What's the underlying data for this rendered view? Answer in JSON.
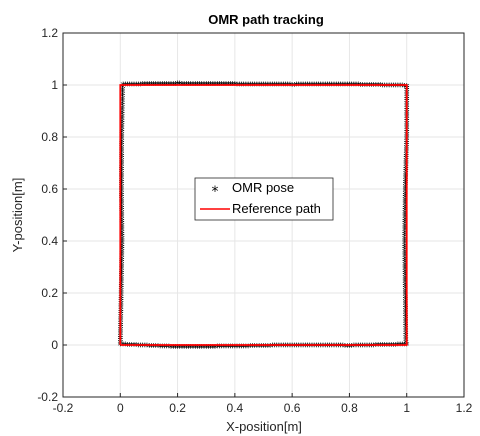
{
  "chart_data": {
    "type": "line",
    "title": "OMR path tracking",
    "xlabel": "X-position[m]",
    "ylabel": "Y-position[m]",
    "xlim": [
      -0.2,
      1.2
    ],
    "ylim": [
      -0.2,
      1.2
    ],
    "xticks": [
      -0.2,
      0,
      0.2,
      0.4,
      0.6,
      0.8,
      1,
      1.2
    ],
    "yticks": [
      -0.2,
      0,
      0.2,
      0.4,
      0.6,
      0.8,
      1,
      1.2
    ],
    "xtick_labels": [
      "-0.2",
      "0",
      "0.2",
      "0.4",
      "0.6",
      "0.8",
      "1",
      "1.2"
    ],
    "ytick_labels": [
      "-0.2",
      "0",
      "0.2",
      "0.4",
      "0.6",
      "0.8",
      "1",
      "1.2"
    ],
    "grid": true,
    "legend_placement": "center",
    "series": [
      {
        "name": "OMR pose",
        "marker": "*",
        "color": "#000000",
        "x": [
          0,
          0.003,
          0.006,
          0.004,
          0.005,
          0.008,
          0.01,
          0.2,
          0.4,
          0.6,
          0.8,
          1,
          1.0,
          0.995,
          0.993,
          0.995,
          0.997,
          1,
          0.8,
          0.6,
          0.4,
          0.2,
          0.002
        ],
        "y": [
          0,
          0.2,
          0.4,
          0.6,
          0.8,
          0.99,
          1,
          1.003,
          1.001,
          0.999,
          1.0,
          0.995,
          0.8,
          0.6,
          0.4,
          0.2,
          0.01,
          0.0,
          -0.005,
          -0.003,
          -0.008,
          -0.01,
          0.0
        ]
      },
      {
        "name": "Reference path",
        "line": "solid",
        "color": "#ff0000",
        "x": [
          0,
          0,
          1,
          1,
          0
        ],
        "y": [
          0,
          1,
          1,
          0,
          0
        ]
      }
    ]
  }
}
